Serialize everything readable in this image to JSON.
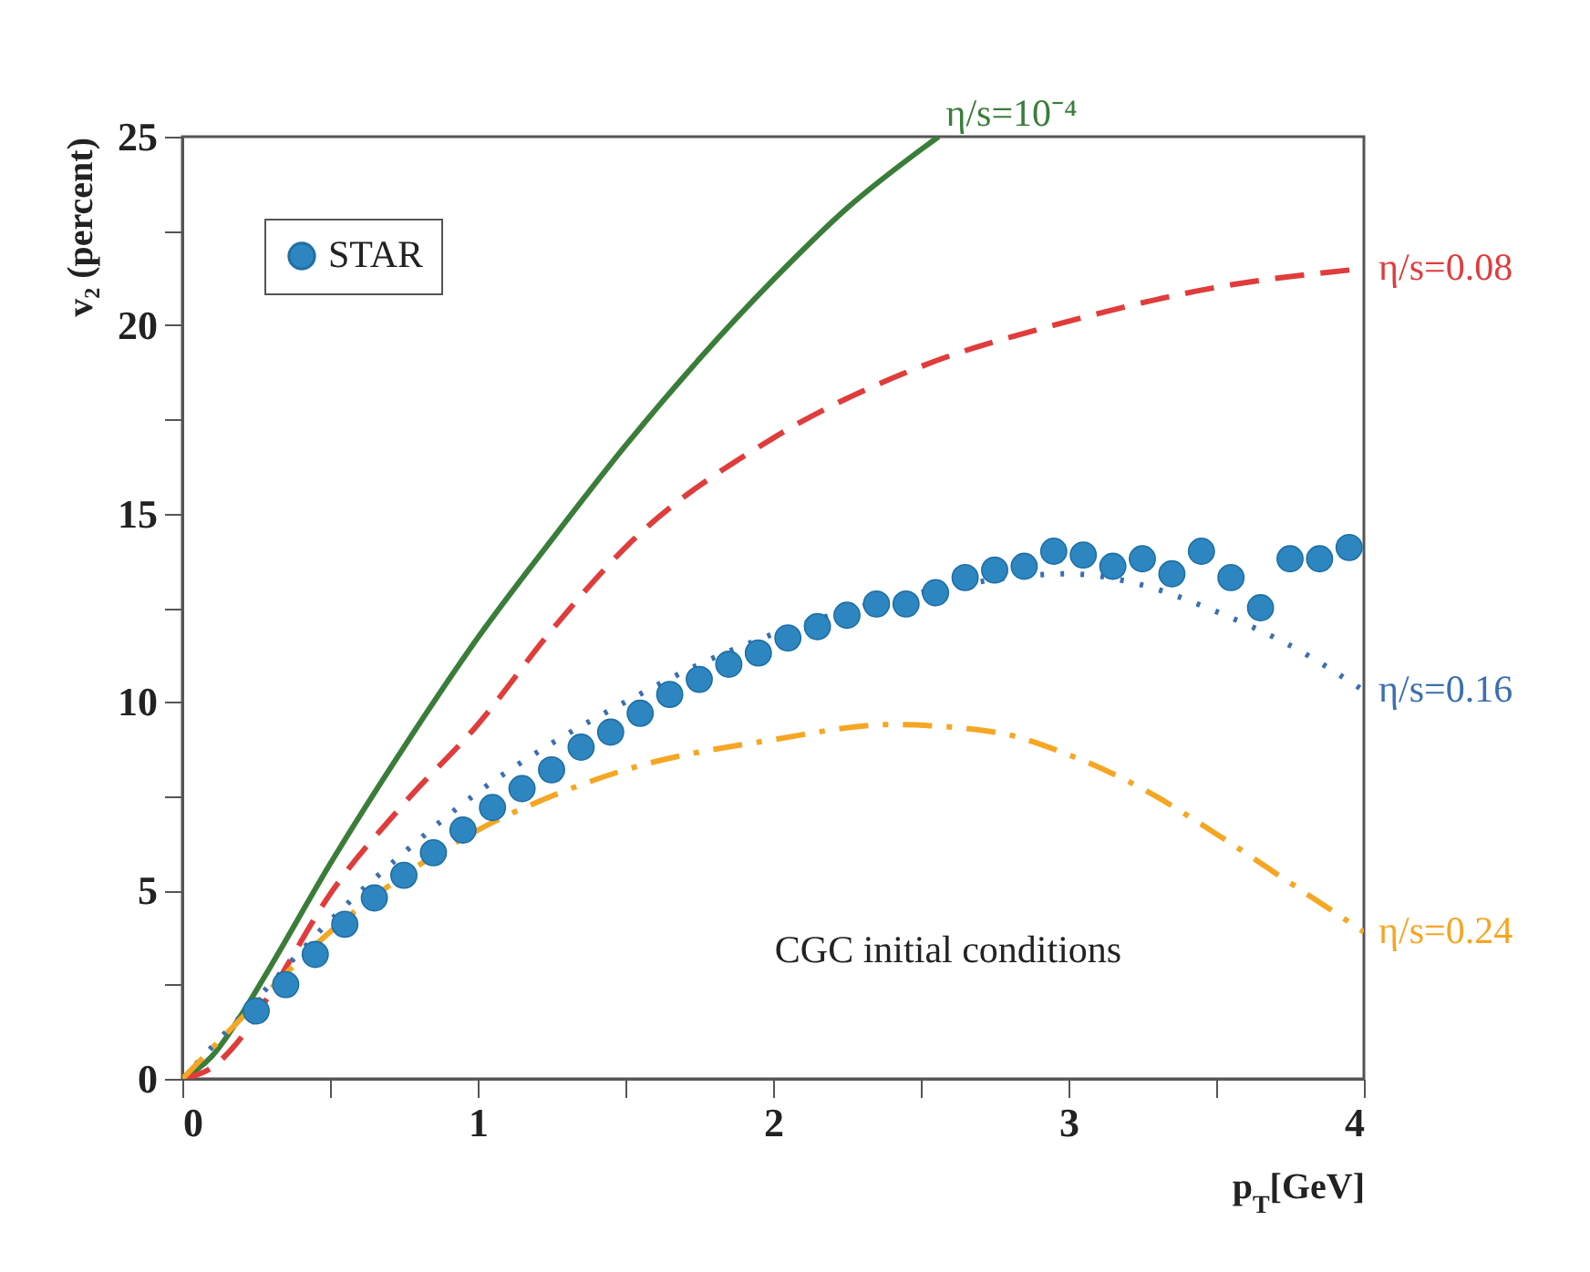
{
  "chart_data": {
    "type": "scatter",
    "xlabel": "p$_{T}$[GeV]",
    "ylabel": "v₂ (percent)",
    "xlim": [
      0,
      4
    ],
    "ylim": [
      0,
      25
    ],
    "xticks": [
      0,
      {
        "value": 0.5,
        "label": null
      },
      1,
      {
        "value": 1.5,
        "label": null
      },
      2,
      {
        "value": 2.5,
        "label": null
      },
      3,
      {
        "value": 3.5,
        "label": null
      },
      4
    ],
    "yticks": [
      0,
      {
        "value": 2.5,
        "label": null
      },
      5,
      {
        "value": 7.5,
        "label": null
      },
      10,
      {
        "value": 12.5,
        "label": null
      },
      15,
      {
        "value": 17.5,
        "label": null
      },
      20,
      {
        "value": 22.5,
        "label": null
      },
      25
    ],
    "grid": false,
    "legend": "top left",
    "annotations": [
      "CGC initial conditions"
    ],
    "series": [
      {
        "name": "η/s=10⁻⁴",
        "type": "line",
        "line_style": "solid",
        "color": "#3a7d3a",
        "x": [
          0,
          0.1,
          0.2,
          0.3,
          0.5,
          0.75,
          1,
          1.25,
          1.5,
          1.75,
          2,
          2.25,
          2.56
        ],
        "values": [
          0,
          0.6,
          1.7,
          3.0,
          5.7,
          8.8,
          11.7,
          14.3,
          16.8,
          19.1,
          21.2,
          23.1,
          25
        ]
      },
      {
        "name": "η/s=0.08",
        "type": "line",
        "line_style": "dashed",
        "color": "#e03c3c",
        "x": [
          0,
          0.1,
          0.2,
          0.3,
          0.5,
          0.75,
          1,
          1.25,
          1.5,
          2,
          2.5,
          3,
          3.5,
          4
        ],
        "values": [
          0,
          0.3,
          1.1,
          2.3,
          4.9,
          7.3,
          9.4,
          11.9,
          14.1,
          17.0,
          18.9,
          20.1,
          21.0,
          21.5
        ]
      },
      {
        "name": "η/s=0.16",
        "type": "line",
        "line_style": "dotted",
        "color": "#3b6fb0",
        "x": [
          0,
          0.25,
          0.5,
          0.75,
          1,
          1.25,
          1.5,
          1.75,
          2,
          2.5,
          3,
          3.25,
          3.5,
          3.75,
          4
        ],
        "values": [
          0,
          2.1,
          4.2,
          6.0,
          7.6,
          8.9,
          10.0,
          11.0,
          11.8,
          12.9,
          13.4,
          13.1,
          12.4,
          11.5,
          10.3
        ]
      },
      {
        "name": "η/s=0.24",
        "type": "line",
        "line_style": "dashdot",
        "color": "#f5a623",
        "x": [
          0,
          0.25,
          0.5,
          0.75,
          1,
          1.25,
          1.5,
          2,
          2.4,
          2.75,
          3,
          3.25,
          3.5,
          3.75,
          4
        ],
        "values": [
          0,
          2.0,
          3.9,
          5.4,
          6.6,
          7.5,
          8.2,
          9.0,
          9.4,
          9.2,
          8.6,
          7.7,
          6.5,
          5.2,
          3.9
        ]
      },
      {
        "name": "STAR",
        "marker": "circle",
        "color": "#2e86c1",
        "x": [
          0.25,
          0.35,
          0.45,
          0.55,
          0.65,
          0.75,
          0.85,
          0.95,
          1.05,
          1.15,
          1.25,
          1.35,
          1.45,
          1.55,
          1.65,
          1.75,
          1.85,
          1.95,
          2.05,
          2.15,
          2.25,
          2.35,
          2.45,
          2.55,
          2.65,
          2.75,
          2.85,
          2.95,
          3.05,
          3.15,
          3.25,
          3.35,
          3.45,
          3.55,
          3.65,
          3.75,
          3.85,
          3.95
        ],
        "values": [
          1.8,
          2.5,
          3.3,
          4.1,
          4.8,
          5.4,
          6.0,
          6.6,
          7.2,
          7.7,
          8.2,
          8.8,
          9.2,
          9.7,
          10.2,
          10.6,
          11.0,
          11.3,
          11.7,
          12.0,
          12.3,
          12.6,
          12.6,
          12.9,
          13.3,
          13.5,
          13.6,
          14.0,
          13.9,
          13.6,
          13.8,
          13.4,
          14.0,
          13.3,
          12.5,
          13.8,
          13.8,
          14.1
        ]
      }
    ]
  }
}
